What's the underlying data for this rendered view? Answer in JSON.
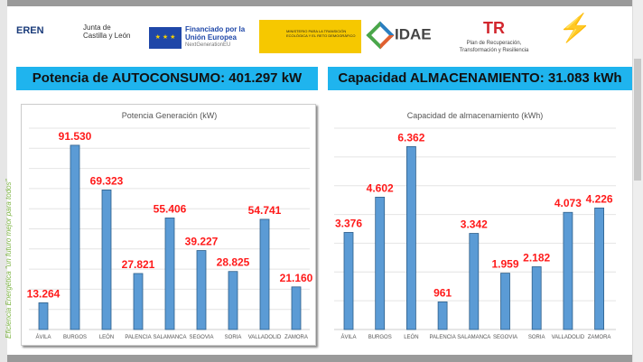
{
  "logos": {
    "eren": "EREN",
    "jcyl": "Junta de Castilla y León",
    "eu_title": "Financiado por la Unión Europea",
    "eu_sub": "NextGenerationEU",
    "ministerio": "MINISTERIO PARA LA TRANSICIÓN ECOLÓGICA Y EL RETO DEMOGRÁFICO",
    "idae": "IDAE",
    "plan": "Plan de Recuperación, Transformación y Resiliencia"
  },
  "header": {
    "left": "Potencia de AUTOCONSUMO: 401.297 kW",
    "right": "Capacidad ALMACENAMIENTO: 31.083 kWh"
  },
  "side_text": "Eficiencia Energética \"un futuro mejor para todos\"",
  "chart_data": [
    {
      "type": "bar",
      "title": "Potencia Generación (kW)",
      "categories": [
        "ÁVILA",
        "BURGOS",
        "LEÓN",
        "PALENCIA",
        "SALAMANCA",
        "SEGOVIA",
        "SORIA",
        "VALLADOLID",
        "ZAMORA"
      ],
      "values": [
        13264,
        91530,
        69323,
        27821,
        55406,
        39227,
        28825,
        54741,
        21160
      ],
      "labels": [
        "13.264",
        "91.530",
        "69.323",
        "27.821",
        "55.406",
        "39.227",
        "28.825",
        "54.741",
        "21.160"
      ],
      "ylim": [
        0,
        100000
      ],
      "ystep": 10000,
      "grid": true,
      "color": "#5b9bd5"
    },
    {
      "type": "bar",
      "title": "Capacidad de almacenamiento (kWh)",
      "categories": [
        "ÁVILA",
        "BURGOS",
        "LEÓN",
        "PALENCIA",
        "SALAMANCA",
        "SEGOVIA",
        "SORIA",
        "VALLADOLID",
        "ZAMORA"
      ],
      "values": [
        3376,
        4602,
        6362,
        961,
        3342,
        1959,
        2182,
        4073,
        4226
      ],
      "labels": [
        "3.376",
        "4.602",
        "6.362",
        "961",
        "3.342",
        "1.959",
        "2.182",
        "4.073",
        "4.226"
      ],
      "ylim": [
        0,
        7000
      ],
      "ystep": 1000,
      "grid": true,
      "color": "#5b9bd5"
    }
  ]
}
